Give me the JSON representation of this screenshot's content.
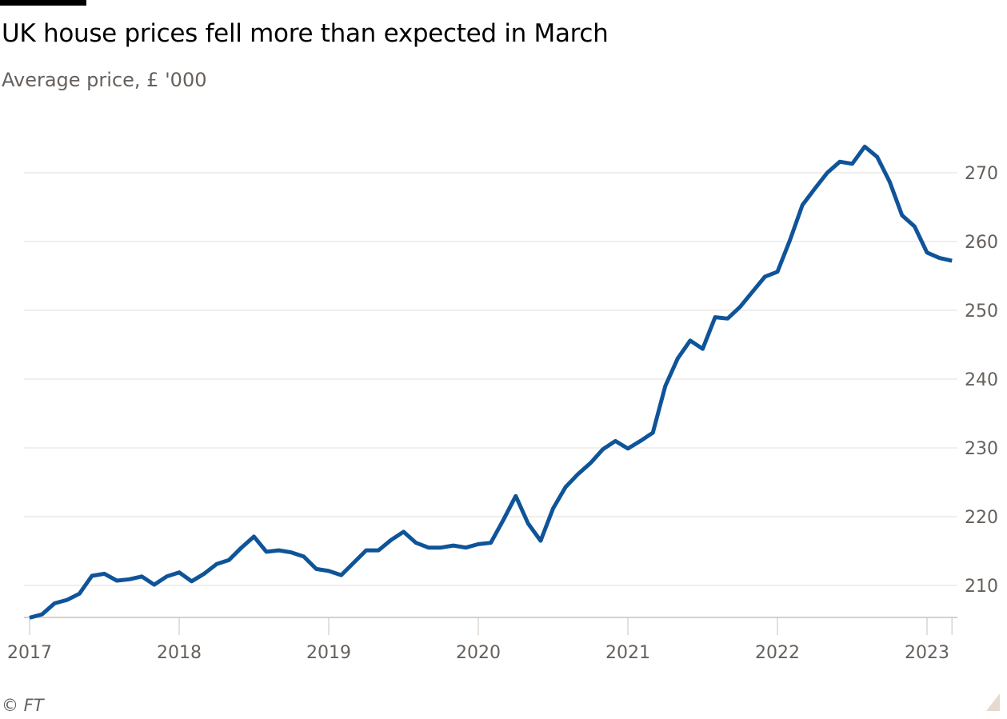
{
  "title": "UK house prices fell more than expected in March",
  "subtitle": "Average price, £ '000",
  "source": "© FT",
  "colors": {
    "line": "#0f5499",
    "grid": "#e6ddd5",
    "axis": "#ccc1b7",
    "text": "#66605c"
  },
  "chart_data": {
    "type": "line",
    "title": "UK house prices fell more than expected in March",
    "subtitle": "Average price, £ '000",
    "xlabel": "",
    "ylabel": "",
    "ylim": [
      205,
      275
    ],
    "y_ticks": [
      210,
      220,
      230,
      240,
      250,
      260,
      270
    ],
    "x_ticks": [
      "2017",
      "2018",
      "2019",
      "2020",
      "2021",
      "2022",
      "2023"
    ],
    "x_start": "2017-01",
    "x_end": "2023-03",
    "frequency": "monthly",
    "y_axis_position": "right",
    "grid": true,
    "series": [
      {
        "values": [
          205.3,
          205.8,
          207.4,
          207.9,
          208.8,
          211.4,
          211.7,
          210.7,
          210.9,
          211.3,
          210.1,
          211.3,
          211.9,
          210.6,
          211.7,
          213.1,
          213.7,
          215.5,
          217.1,
          214.9,
          215.1,
          214.8,
          214.2,
          212.4,
          212.1,
          211.5,
          213.3,
          215.1,
          215.1,
          216.6,
          217.8,
          216.2,
          215.5,
          215.5,
          215.8,
          215.5,
          216.0,
          216.2,
          219.5,
          223.0,
          219.0,
          216.5,
          221.2,
          224.3,
          226.2,
          227.8,
          229.8,
          231.0,
          229.9,
          231.0,
          232.2,
          239.0,
          243.0,
          245.6,
          244.4,
          249.0,
          248.8,
          250.5,
          252.7,
          254.9,
          255.6,
          260.2,
          265.3,
          267.7,
          270.0,
          271.6,
          271.3,
          273.8,
          272.3,
          268.7,
          263.8,
          262.2,
          258.4,
          257.6,
          257.2
        ]
      }
    ]
  }
}
